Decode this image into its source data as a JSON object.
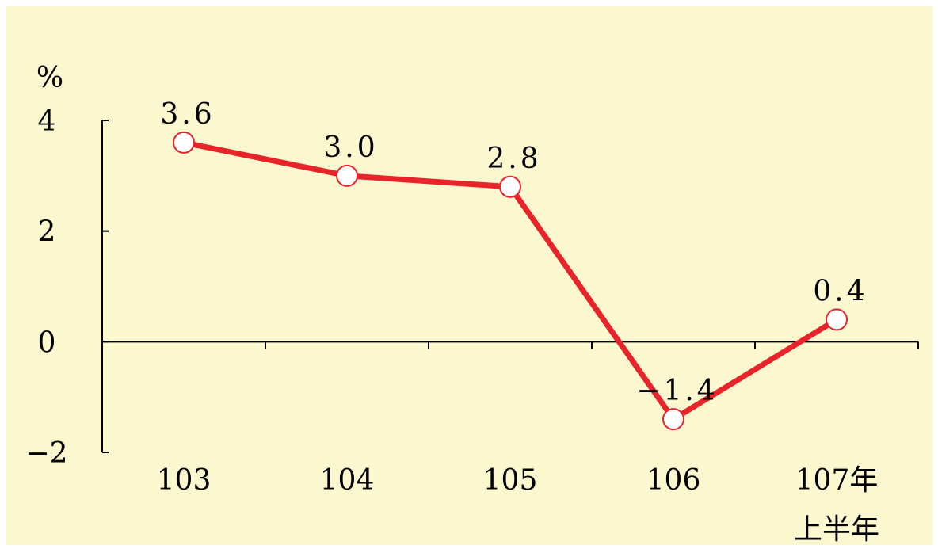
{
  "chart_data": {
    "type": "line",
    "unit_label": "%",
    "categories": [
      "103",
      "104",
      "105",
      "106",
      "107年"
    ],
    "category_sublabels": [
      "",
      "",
      "",
      "",
      "上半年"
    ],
    "values": [
      3.6,
      3.0,
      2.8,
      -1.4,
      0.4
    ],
    "data_labels": [
      "3.6",
      "3.0",
      "2.8",
      "−1.4",
      "0.4"
    ],
    "ylim": [
      -2,
      4
    ],
    "yticks": [
      4,
      2,
      0,
      -2
    ],
    "ytick_labels": [
      "4",
      "2",
      "0",
      "−2"
    ],
    "grid": false,
    "legend": "none"
  },
  "colors": {
    "background": "#fbf8cf",
    "line": "#e8232a",
    "marker_fill": "#ffffff",
    "marker_stroke": "#e8232a",
    "axis": "#000000",
    "text": "#000000"
  }
}
